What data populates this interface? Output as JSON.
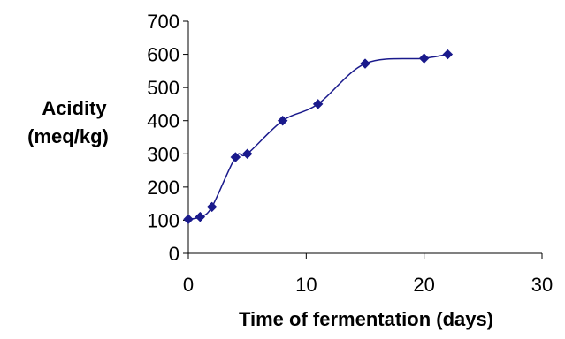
{
  "chart_data": {
    "type": "line",
    "title": "",
    "xlabel": "Time of fermentation (days)",
    "ylabel_lines": [
      "Acidity",
      "(meq/kg)"
    ],
    "xlim": [
      0,
      30
    ],
    "ylim": [
      0,
      700
    ],
    "x_ticks": [
      0,
      10,
      20,
      30
    ],
    "y_ticks": [
      0,
      100,
      200,
      300,
      400,
      500,
      600,
      700
    ],
    "grid": false,
    "legend": "none",
    "marker": "diamond",
    "smooth": true,
    "series_color": "#1a1a8c",
    "series": [
      {
        "x": [
          0,
          1,
          2,
          4,
          5,
          8,
          11,
          15,
          20,
          22
        ],
        "values": [
          103,
          110,
          140,
          290,
          300,
          400,
          450,
          572,
          588,
          600
        ]
      }
    ]
  }
}
